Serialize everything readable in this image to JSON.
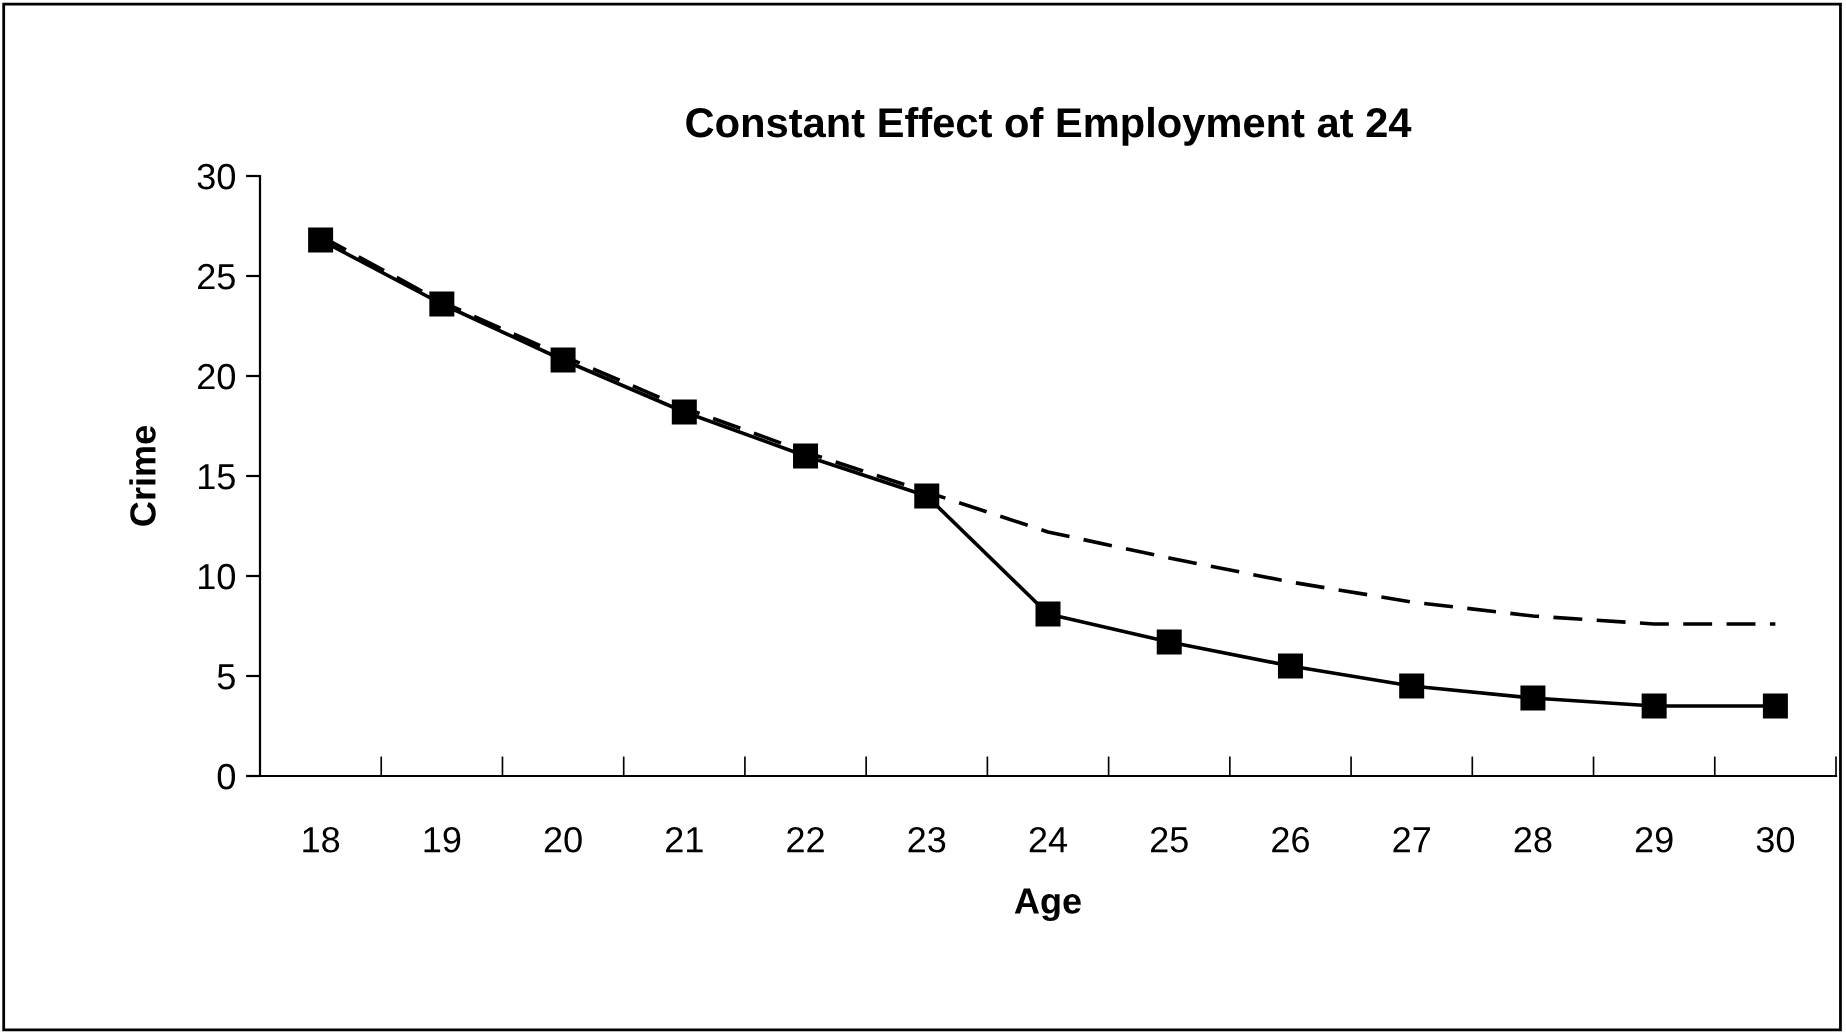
{
  "chart_data": {
    "type": "line",
    "title": "Constant Effect of Employment at 24",
    "xlabel": "Age",
    "ylabel": "Crime",
    "categories": [
      "18",
      "19",
      "20",
      "21",
      "22",
      "23",
      "24",
      "25",
      "26",
      "27",
      "28",
      "29",
      "30"
    ],
    "series": [
      {
        "color": "#000000",
        "marker": "square",
        "line_style": "solid",
        "values": [
          26.8,
          23.6,
          20.8,
          18.2,
          16.0,
          14.0,
          8.1,
          6.7,
          5.5,
          4.5,
          3.9,
          3.5,
          3.5
        ]
      },
      {
        "color": "#000000",
        "marker": "none",
        "line_style": "dashed",
        "values": [
          27.0,
          23.7,
          21.0,
          18.4,
          16.2,
          14.2,
          12.2,
          10.9,
          9.7,
          8.7,
          8.0,
          7.6,
          7.6
        ]
      }
    ],
    "ylim": [
      0,
      30
    ],
    "yticks": [
      0,
      5,
      10,
      15,
      20,
      25,
      30
    ],
    "grid": false,
    "legend": false
  }
}
